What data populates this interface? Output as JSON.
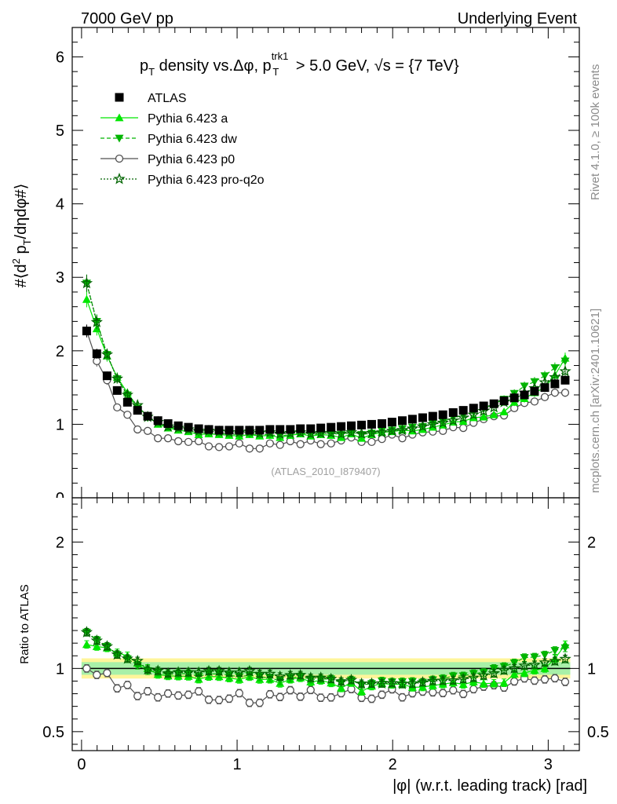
{
  "header": {
    "left": "7000 GeV pp",
    "right": "Underlying Event"
  },
  "side": {
    "rivet": "Rivet 4.1.0, ≥ 100k events",
    "site": "mcplots.cern.ch [arXiv:2401.10621]"
  },
  "colors": {
    "atlas": "#000000",
    "pythia_a": "#00e600",
    "pythia_dw": "#00b400",
    "pythia_p0": "#505050",
    "pythia_q2o": "#006400",
    "band_inner": "#a8f0a8",
    "band_outer": "#fff59a"
  },
  "chart_data": {
    "type": "scatter",
    "main": {
      "title": "pT density vs.Δφ, pT trk1 > 5.0 GeV, √s = {7 TeV}",
      "ylabel": "#⟨d² pT/dηdφ#⟩",
      "ylim": [
        0,
        6.4
      ],
      "yticks": [
        0,
        1,
        2,
        3,
        4,
        5,
        6
      ],
      "watermark": "(ATLAS_2010_I879407)"
    },
    "ratio": {
      "ylabel": "Ratio to ATLAS",
      "ylim": [
        0.35,
        2.35
      ],
      "yticks": [
        0.5,
        1,
        2
      ],
      "band_inner": 0.05,
      "band_outer": 0.08
    },
    "xlabel": "|φ| (w.r.t. leading track) [rad]",
    "xlim": [
      -0.06,
      3.2
    ],
    "xticks": [
      0,
      1,
      2,
      3
    ],
    "x": [
      0.033,
      0.098,
      0.164,
      0.229,
      0.295,
      0.36,
      0.425,
      0.491,
      0.556,
      0.622,
      0.687,
      0.753,
      0.818,
      0.884,
      0.949,
      1.014,
      1.08,
      1.145,
      1.211,
      1.276,
      1.342,
      1.407,
      1.473,
      1.538,
      1.604,
      1.669,
      1.734,
      1.8,
      1.865,
      1.931,
      1.996,
      2.062,
      2.127,
      2.193,
      2.258,
      2.323,
      2.389,
      2.454,
      2.52,
      2.585,
      2.651,
      2.716,
      2.782,
      2.847,
      2.912,
      2.978,
      3.043,
      3.109
    ],
    "series": [
      {
        "name": "ATLAS",
        "key": "atlas",
        "marker": "square",
        "values": [
          2.27,
          1.96,
          1.66,
          1.46,
          1.3,
          1.19,
          1.11,
          1.05,
          1.01,
          0.98,
          0.96,
          0.94,
          0.93,
          0.92,
          0.92,
          0.92,
          0.92,
          0.92,
          0.93,
          0.93,
          0.93,
          0.94,
          0.94,
          0.95,
          0.96,
          0.97,
          0.98,
          0.99,
          1.0,
          1.01,
          1.03,
          1.05,
          1.07,
          1.09,
          1.11,
          1.13,
          1.16,
          1.19,
          1.22,
          1.25,
          1.28,
          1.32,
          1.36,
          1.4,
          1.45,
          1.5,
          1.55,
          1.6
        ]
      },
      {
        "name": "Pythia 6.423 a",
        "key": "pythia_a",
        "marker": "triangle-up",
        "values": [
          2.7,
          2.3,
          1.93,
          1.64,
          1.43,
          1.24,
          1.11,
          1.0,
          0.95,
          0.92,
          0.9,
          0.86,
          0.87,
          0.86,
          0.85,
          0.84,
          0.86,
          0.84,
          0.85,
          0.82,
          0.85,
          0.87,
          0.84,
          0.86,
          0.85,
          0.82,
          0.87,
          0.81,
          0.86,
          0.89,
          0.9,
          0.92,
          0.91,
          0.93,
          0.96,
          0.99,
          1.03,
          1.04,
          1.09,
          1.1,
          1.13,
          1.17,
          1.3,
          1.35,
          1.43,
          1.5,
          1.67,
          1.9
        ]
      },
      {
        "name": "Pythia 6.423 dw",
        "key": "pythia_dw",
        "marker": "triangle-down",
        "values": [
          2.92,
          2.4,
          1.95,
          1.62,
          1.4,
          1.22,
          1.09,
          1.02,
          0.96,
          0.94,
          0.92,
          0.88,
          0.89,
          0.88,
          0.87,
          0.86,
          0.87,
          0.86,
          0.86,
          0.84,
          0.86,
          0.88,
          0.86,
          0.87,
          0.88,
          0.86,
          0.89,
          0.86,
          0.88,
          0.91,
          0.92,
          0.94,
          0.96,
          0.97,
          1.01,
          1.04,
          1.09,
          1.12,
          1.17,
          1.21,
          1.28,
          1.34,
          1.42,
          1.52,
          1.58,
          1.66,
          1.77,
          1.86
        ]
      },
      {
        "name": "Pythia 6.423 p0",
        "key": "pythia_p0",
        "marker": "circle-open",
        "values": [
          2.27,
          1.86,
          1.6,
          1.23,
          1.13,
          0.93,
          0.91,
          0.81,
          0.81,
          0.77,
          0.76,
          0.77,
          0.7,
          0.69,
          0.7,
          0.74,
          0.67,
          0.67,
          0.74,
          0.72,
          0.77,
          0.73,
          0.78,
          0.73,
          0.74,
          0.78,
          0.82,
          0.76,
          0.76,
          0.8,
          0.86,
          0.81,
          0.86,
          0.89,
          0.9,
          0.91,
          0.96,
          0.95,
          1.02,
          1.07,
          1.11,
          1.12,
          1.22,
          1.29,
          1.31,
          1.37,
          1.43,
          1.43
        ]
      },
      {
        "name": "Pythia 6.423 pro-q2o",
        "key": "pythia_q2o",
        "marker": "star-open",
        "values": [
          2.92,
          2.39,
          1.95,
          1.62,
          1.4,
          1.26,
          1.1,
          1.03,
          0.97,
          0.95,
          0.93,
          0.91,
          0.91,
          0.9,
          0.89,
          0.89,
          0.9,
          0.88,
          0.89,
          0.87,
          0.88,
          0.89,
          0.87,
          0.88,
          0.88,
          0.87,
          0.89,
          0.87,
          0.88,
          0.89,
          0.91,
          0.92,
          0.94,
          0.97,
          1.0,
          1.02,
          1.05,
          1.09,
          1.13,
          1.18,
          1.23,
          1.3,
          1.36,
          1.43,
          1.49,
          1.57,
          1.64,
          1.72
        ]
      }
    ]
  }
}
